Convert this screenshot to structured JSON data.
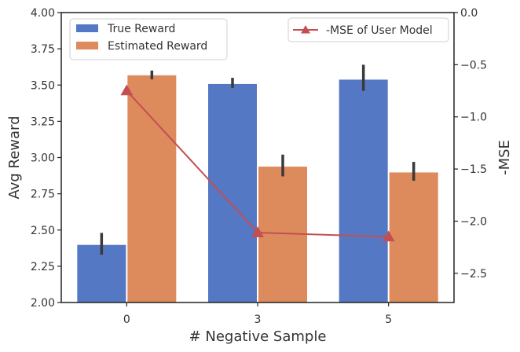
{
  "chart_data": {
    "type": "bar",
    "title": "",
    "xlabel": "# Negative Sample",
    "ylabel": "Avg Reward",
    "y2label": "-MSE",
    "categories": [
      "0",
      "3",
      "5"
    ],
    "ylim": [
      2.0,
      4.0
    ],
    "y_ticks": [
      "2.00",
      "2.25",
      "2.50",
      "2.75",
      "3.00",
      "3.25",
      "3.50",
      "3.75",
      "4.00"
    ],
    "y2lim": [
      -2.78,
      0.0
    ],
    "y2_ticks": [
      "0.0",
      "−0.5",
      "−1.0",
      "−1.5",
      "−2.0",
      "−2.5"
    ],
    "series": [
      {
        "name": "True Reward",
        "color": "#5578c4",
        "values": [
          2.4,
          3.51,
          3.54
        ],
        "err_low": [
          2.33,
          3.48,
          3.46
        ],
        "err_high": [
          2.48,
          3.55,
          3.64
        ]
      },
      {
        "name": "Estimated Reward",
        "color": "#dd8a5c",
        "values": [
          3.57,
          2.94,
          2.9
        ],
        "err_low": [
          3.54,
          2.87,
          2.84
        ],
        "err_high": [
          3.6,
          3.02,
          2.97
        ]
      }
    ],
    "line_series": {
      "name": "-MSE of User Model",
      "color": "#c44e52",
      "marker": "triangle",
      "values": [
        -0.75,
        -2.11,
        -2.15
      ]
    },
    "legend_left_placement": "top-left",
    "legend_right_placement": "top-right",
    "grid": false
  }
}
